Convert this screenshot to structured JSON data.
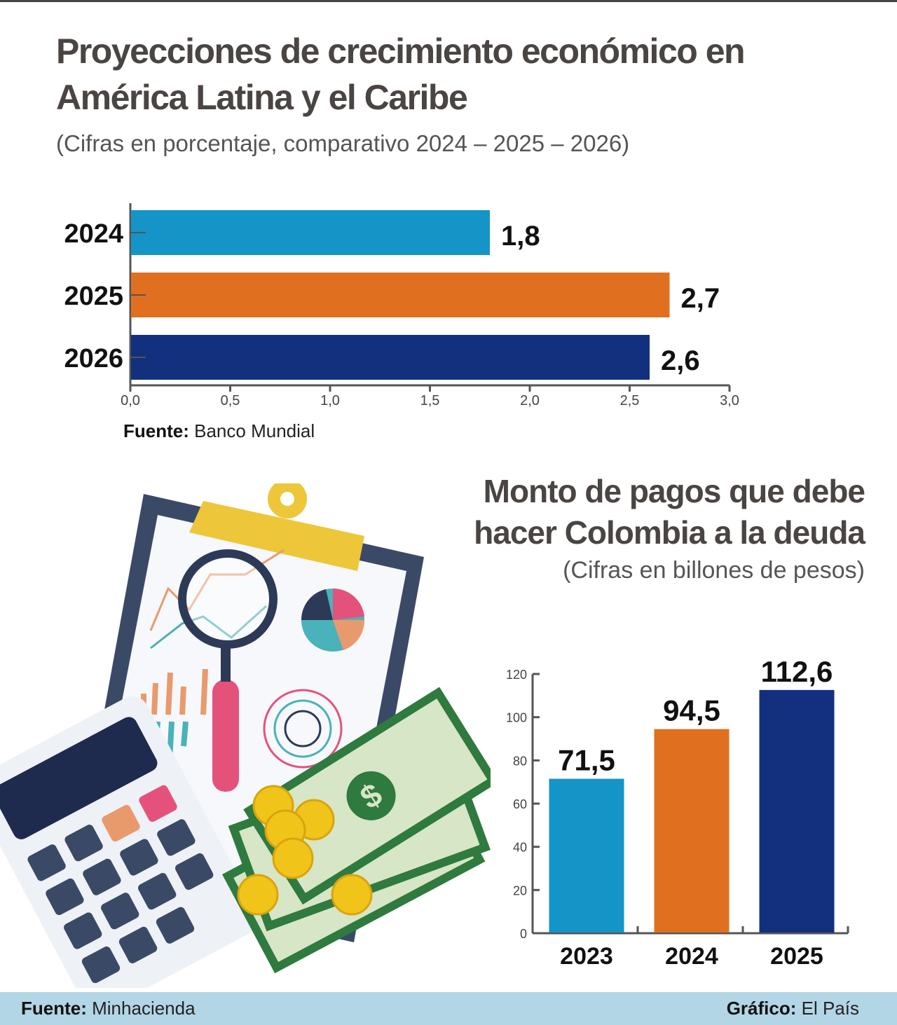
{
  "chart_data": [
    {
      "type": "bar",
      "orientation": "horizontal",
      "title": "Proyecciones de crecimiento económico en América Latina y el Caribe",
      "subtitle": "(Cifras en porcentaje, comparativo 2024 – 2025 – 2026)",
      "categories": [
        "2024",
        "2025",
        "2026"
      ],
      "values": [
        1.8,
        2.7,
        2.6
      ],
      "value_labels": [
        "1,8",
        "2,7",
        "2,6"
      ],
      "colors": [
        "#1594c8",
        "#e07020",
        "#12307e"
      ],
      "xlim": [
        0,
        3.0
      ],
      "xticks": [
        "0,0",
        "0,5",
        "1,0",
        "1,5",
        "2,0",
        "2,5",
        "3,0"
      ],
      "grid": false,
      "source_label": "Fuente:",
      "source": "Banco Mundial"
    },
    {
      "type": "bar",
      "orientation": "vertical",
      "title": "Monto de pagos que debe hacer Colombia a la deuda",
      "subtitle": "(Cifras en billones de pesos)",
      "categories": [
        "2023",
        "2024",
        "2025"
      ],
      "values": [
        71.5,
        94.5,
        112.6
      ],
      "value_labels": [
        "71,5",
        "94,5",
        "112,6"
      ],
      "colors": [
        "#1594c8",
        "#e07020",
        "#12307e"
      ],
      "ylim": [
        0,
        120
      ],
      "yticks": [
        "0",
        "20",
        "40",
        "60",
        "80",
        "100",
        "120"
      ],
      "grid": false
    }
  ],
  "footer": {
    "source_label": "Fuente:",
    "source": "Minhacienda",
    "credit_label": "Gráfico:",
    "credit": "El País"
  },
  "illustration": [
    "clipboard-icon",
    "magnifier-icon",
    "calculator-icon",
    "banknotes-icon",
    "coins-icon"
  ]
}
